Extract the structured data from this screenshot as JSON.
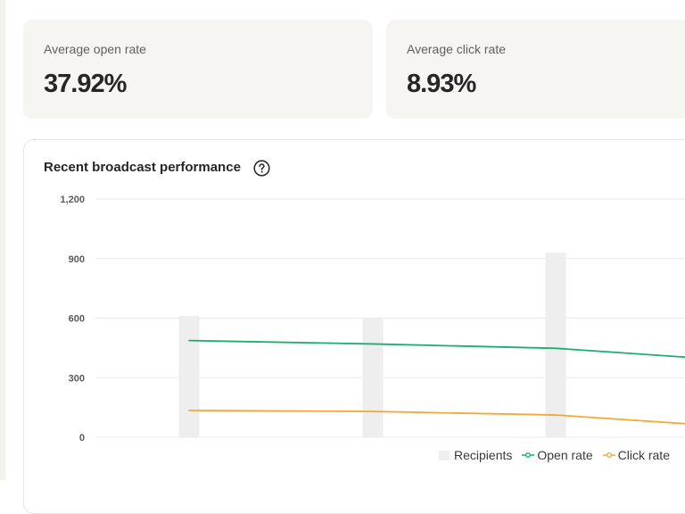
{
  "stats": {
    "open_rate": {
      "label": "Average open rate",
      "value": "37.92%"
    },
    "click_rate": {
      "label": "Average click rate",
      "value": "8.93%"
    }
  },
  "chart_title": "Recent broadcast performance",
  "help_icon": "question-circle-icon",
  "colors": {
    "recipients": "#eeeeee",
    "open_rate": "#1aaf6c",
    "click_rate": "#f2a93b",
    "grid": "#e8e8e8",
    "tick_text": "#5a5a5a"
  },
  "chart_data": {
    "type": "bar",
    "title": "Recent broadcast performance",
    "xlabel": "",
    "ylabel": "",
    "ylim": [
      0,
      1200
    ],
    "y_ticks": [
      0,
      300,
      600,
      900,
      1200
    ],
    "y_tick_labels": [
      "0",
      "300",
      "600",
      "900",
      "1,200"
    ],
    "grid": true,
    "legend_position": "bottom-right",
    "categories": [
      "",
      "",
      "",
      ""
    ],
    "series": [
      {
        "name": "Recipients",
        "kind": "bar",
        "values": [
          610,
          600,
          930,
          null
        ]
      },
      {
        "name": "Open rate",
        "kind": "line",
        "values": [
          487,
          470,
          448,
          385
        ]
      },
      {
        "name": "Click rate",
        "kind": "line",
        "values": [
          135,
          130,
          112,
          50
        ]
      }
    ]
  }
}
